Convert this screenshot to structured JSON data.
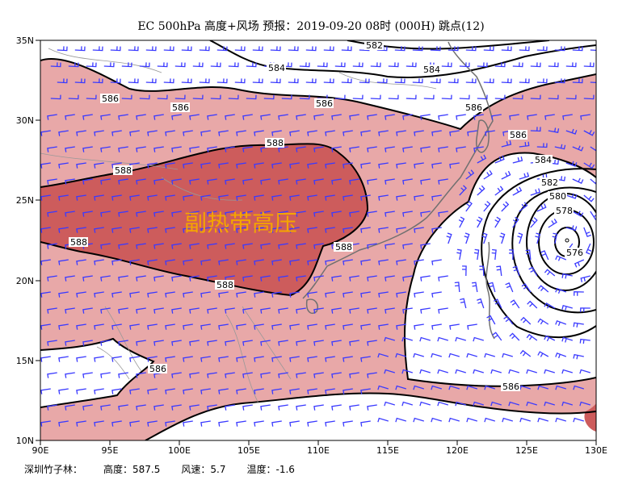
{
  "title": "EC 500hPa 高度+风场  预报：2019-09-20 08时 (000H) 跳点(12)",
  "footer": {
    "station": "深圳竹子林：",
    "height_label": "高度：",
    "height_value": "587.5",
    "wind_label": "风速：",
    "wind_value": "5.7",
    "temp_label": "温度：",
    "temp_value": "-1.6"
  },
  "annotation": "副热带高压",
  "axes": {
    "x_ticks": [
      "90E",
      "95E",
      "100E",
      "105E",
      "110E",
      "115E",
      "120E",
      "125E",
      "130E"
    ],
    "y_ticks": [
      "35N",
      "30N",
      "25N",
      "20N",
      "15N",
      "10N"
    ]
  },
  "contour_labels": {
    "l582_top": "582",
    "l584_top": "584",
    "l584_top2": "584",
    "l586_a": "586",
    "l586_b": "586",
    "l586_c": "586",
    "l586_d": "586",
    "l586_e": "586",
    "l586_f": "586",
    "l586_g": "586",
    "l588_a": "588",
    "l588_b": "588",
    "l588_c": "588",
    "l588_d": "588",
    "l588_e": "588",
    "l584_ty": "584",
    "l582_ty": "582",
    "l580_ty": "580",
    "l578_ty": "578",
    "l576_ty": "576"
  },
  "colors": {
    "band_586": "#e8a8a8",
    "band_588": "#cd5c5c",
    "wind_barb": "#3a3aff",
    "coast": "#707070",
    "contour": "#000000",
    "annotation": "#f5a500"
  }
}
